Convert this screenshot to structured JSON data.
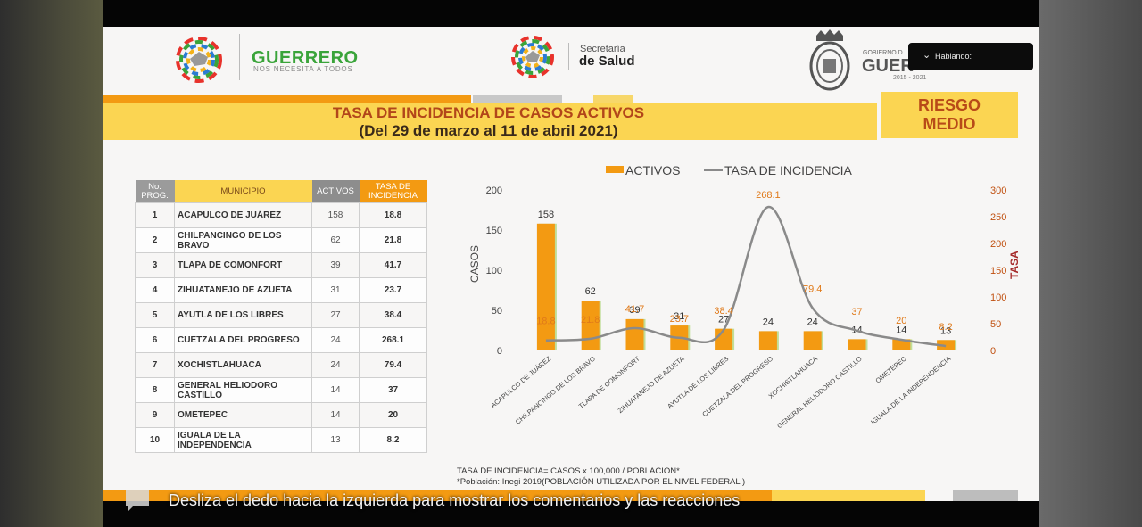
{
  "header": {
    "guerrero_title": "GUERRERO",
    "guerrero_subtitle": "NOS NECESITA A TODOS",
    "secretaria_line1": "Secretaría",
    "secretaria_line2": "de Salud",
    "gobierno_line1": "GOBIERNO D",
    "gobierno_line2": "GUER",
    "gobierno_years": "2015 - 2021",
    "speaking_indicator": "Hablando:"
  },
  "title": {
    "line1": "TASA DE INCIDENCIA DE CASOS ACTIVOS",
    "line2": "(Del 29 de marzo al 11 de abril 2021)"
  },
  "risk": {
    "line1": "RIESGO",
    "line2": "MEDIO"
  },
  "table": {
    "headers": {
      "no": "No. PROG.",
      "municipio": "MUNICIPIO",
      "activos": "ACTIVOS",
      "tasa": "TASA DE INCIDENCIA"
    },
    "rows": [
      {
        "no": "1",
        "municipio": "ACAPULCO DE JUÁREZ",
        "activos": "158",
        "tasa": "18.8"
      },
      {
        "no": "2",
        "municipio": "CHILPANCINGO DE LOS BRAVO",
        "activos": "62",
        "tasa": "21.8"
      },
      {
        "no": "3",
        "municipio": "TLAPA DE COMONFORT",
        "activos": "39",
        "tasa": "41.7"
      },
      {
        "no": "4",
        "municipio": "ZIHUATANEJO DE AZUETA",
        "activos": "31",
        "tasa": "23.7"
      },
      {
        "no": "5",
        "municipio": "AYUTLA DE LOS LIBRES",
        "activos": "27",
        "tasa": "38.4"
      },
      {
        "no": "6",
        "municipio": "CUETZALA DEL PROGRESO",
        "activos": "24",
        "tasa": "268.1"
      },
      {
        "no": "7",
        "municipio": "XOCHISTLAHUACA",
        "activos": "24",
        "tasa": "79.4"
      },
      {
        "no": "8",
        "municipio": "GENERAL HELIODORO CASTILLO",
        "activos": "14",
        "tasa": "37"
      },
      {
        "no": "9",
        "municipio": "OMETEPEC",
        "activos": "14",
        "tasa": "20"
      },
      {
        "no": "10",
        "municipio": "IGUALA DE LA INDEPENDENCIA",
        "activos": "13",
        "tasa": "8.2"
      }
    ]
  },
  "chart_data": {
    "type": "bar",
    "categories": [
      "ACAPULCO DE JUÁREZ",
      "CHILPANCINGO DE LOS BRAVO",
      "TLAPA DE COMONFORT",
      "ZIHUATANEJO DE AZUETA",
      "AYUTLA DE LOS LIBRES",
      "CUETZALA DEL PROGRESO",
      "XOCHISTLAHUACA",
      "GENERAL HELIODORO CASTILLO",
      "OMETEPEC",
      "IGUALA DE LA INDEPENDENCIA"
    ],
    "series": [
      {
        "name": "ACTIVOS",
        "type": "bar",
        "axis": "left",
        "values": [
          158,
          62,
          39,
          31,
          27,
          24,
          24,
          14,
          14,
          13
        ],
        "color": "#f39a12"
      },
      {
        "name": "TASA DE INCIDENCIA",
        "type": "line",
        "axis": "right",
        "values": [
          18.8,
          21.8,
          41.7,
          23.7,
          38.4,
          268.1,
          79.4,
          37,
          20,
          8.2
        ],
        "color": "#8a8a8a",
        "label_color": "#e07a1a"
      }
    ],
    "ylabel": "CASOS",
    "y2label": "TASA",
    "ylim": [
      0,
      200
    ],
    "yticks": [
      0,
      50,
      100,
      150,
      200
    ],
    "y2lim": [
      0,
      300
    ],
    "y2ticks": [
      0,
      50,
      100,
      150,
      200,
      250,
      300
    ],
    "legend": "top",
    "grid": false
  },
  "footnote": {
    "line1": "TASA DE INCIDENCIA= CASOS x 100,000 / POBLACION*",
    "line2": "*Población: Inegi 2019(POBLACIÓN UTILIZADA POR EL NIVEL FEDERAL )"
  },
  "overlay": {
    "caption": "Desliza el dedo hacia la izquierda para mostrar los comentarios y las reacciones"
  },
  "colors": {
    "orange": "#f39a12",
    "yellow": "#fbd552",
    "green": "#3aa43a",
    "risk_text": "#b84a18"
  }
}
